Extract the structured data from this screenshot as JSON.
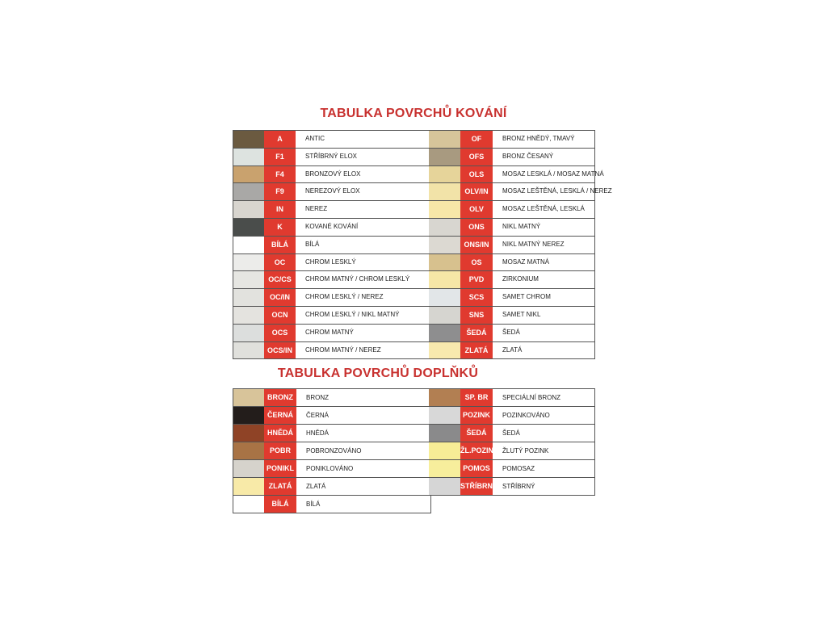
{
  "section1": {
    "title": "TABULKA POVRCHŮ KOVÁNÍ",
    "left": [
      {
        "code": "A",
        "desc": "ANTIC",
        "color": "#6b5a40"
      },
      {
        "code": "F1",
        "desc": "STŘÍBRNÝ ELOX",
        "color": "#dde3e0"
      },
      {
        "code": "F4",
        "desc": "BRONZOVÝ ELOX",
        "color": "#c9a26e"
      },
      {
        "code": "F9",
        "desc": "NEREZOVÝ ELOX",
        "color": "#a9a8a6"
      },
      {
        "code": "IN",
        "desc": "NEREZ",
        "color": "#d8d5cf"
      },
      {
        "code": "K",
        "desc": "KOVANÉ KOVÁNÍ",
        "color": "#4a4d4b"
      },
      {
        "code": "BÍLÁ",
        "desc": "BÍLÁ",
        "color": "#ffffff"
      },
      {
        "code": "OC",
        "desc": "CHROM LESKLÝ",
        "color": "#ececea"
      },
      {
        "code": "OC/CS",
        "desc": "CHROM MATNÝ / CHROM LESKLÝ",
        "color": "#e6e6e2"
      },
      {
        "code": "OC/IN",
        "desc": "CHROM LESKLÝ / NEREZ",
        "color": "#e2e2de"
      },
      {
        "code": "OCN",
        "desc": "CHROM LESKLÝ / NIKL MATNÝ",
        "color": "#e4e3df"
      },
      {
        "code": "OCS",
        "desc": "CHROM MATNÝ",
        "color": "#dcdedd"
      },
      {
        "code": "OCS/IN",
        "desc": "CHROM MATNÝ / NEREZ",
        "color": "#e0e0dc"
      }
    ],
    "right": [
      {
        "code": "OF",
        "desc": "BRONZ HNĚDÝ, TMAVÝ",
        "color": "#d6c59a"
      },
      {
        "code": "OFS",
        "desc": "BRONZ ČESANÝ",
        "color": "#a89a80"
      },
      {
        "code": "OLS",
        "desc": "MOSAZ LESKLÁ / MOSAZ MATNÁ",
        "color": "#e6d49a"
      },
      {
        "code": "OLV/IN",
        "desc": "MOSAZ LEŠTĚNÁ, LESKLÁ / NEREZ",
        "color": "#f2e3a8"
      },
      {
        "code": "OLV",
        "desc": "MOSAZ LEŠTĚNÁ, LESKLÁ",
        "color": "#f7e7a8"
      },
      {
        "code": "ONS",
        "desc": "NIKL MATNÝ",
        "color": "#d8d6d0"
      },
      {
        "code": "ONS/IN",
        "desc": "NIKL MATNÝ NEREZ",
        "color": "#dcd9d2"
      },
      {
        "code": "OS",
        "desc": "MOSAZ MATNÁ",
        "color": "#d7c18e"
      },
      {
        "code": "PVD",
        "desc": "ZIRKONIUM",
        "color": "#f6e6a6"
      },
      {
        "code": "SCS",
        "desc": "SAMET CHROM",
        "color": "#e2e6e8"
      },
      {
        "code": "SNS",
        "desc": "SAMET NIKL",
        "color": "#d6d5d0"
      },
      {
        "code": "ŠEDÁ",
        "desc": "ŠEDÁ",
        "color": "#8e8e8f"
      },
      {
        "code": "ZLATÁ",
        "desc": "ZLATÁ",
        "color": "#f8e9ae"
      }
    ]
  },
  "section2": {
    "title": "TABULKA POVRCHŮ DOPLŇKŮ",
    "left": [
      {
        "code": "BRONZ",
        "desc": "BRONZ",
        "color": "#d8c49a"
      },
      {
        "code": "ČERNÁ",
        "desc": "ČERNÁ",
        "color": "#231d1b"
      },
      {
        "code": "HNĚDÁ",
        "desc": "HNĚDÁ",
        "color": "#8f4326"
      },
      {
        "code": "POBR",
        "desc": "POBRONZOVÁNO",
        "color": "#a87345"
      },
      {
        "code": "PONIKL",
        "desc": "PONIKLOVÁNO",
        "color": "#d6d3cc"
      },
      {
        "code": "ZLATÁ",
        "desc": "ZLATÁ",
        "color": "#f8eaa8"
      },
      {
        "code": "BÍLÁ",
        "desc": "BÍLÁ",
        "color": "#ffffff"
      }
    ],
    "right": [
      {
        "code": "SP. BR",
        "desc": "SPECIÁLNÍ BRONZ",
        "color": "#b27f52"
      },
      {
        "code": "POZINK",
        "desc": "POZINKOVÁNO",
        "color": "#d8d8d8"
      },
      {
        "code": "ŠEDÁ",
        "desc": "ŠEDÁ",
        "color": "#8a8a8b"
      },
      {
        "code": "ŽL.POZINK",
        "desc": "ŽLUTÝ POZINK",
        "color": "#f7ed96"
      },
      {
        "code": "POMOS",
        "desc": "POMOSAZ",
        "color": "#f7ee9c"
      },
      {
        "code": "STŘÍBRNÝ",
        "desc": "STŘÍBRNÝ",
        "color": "#d6d6d6"
      }
    ]
  }
}
